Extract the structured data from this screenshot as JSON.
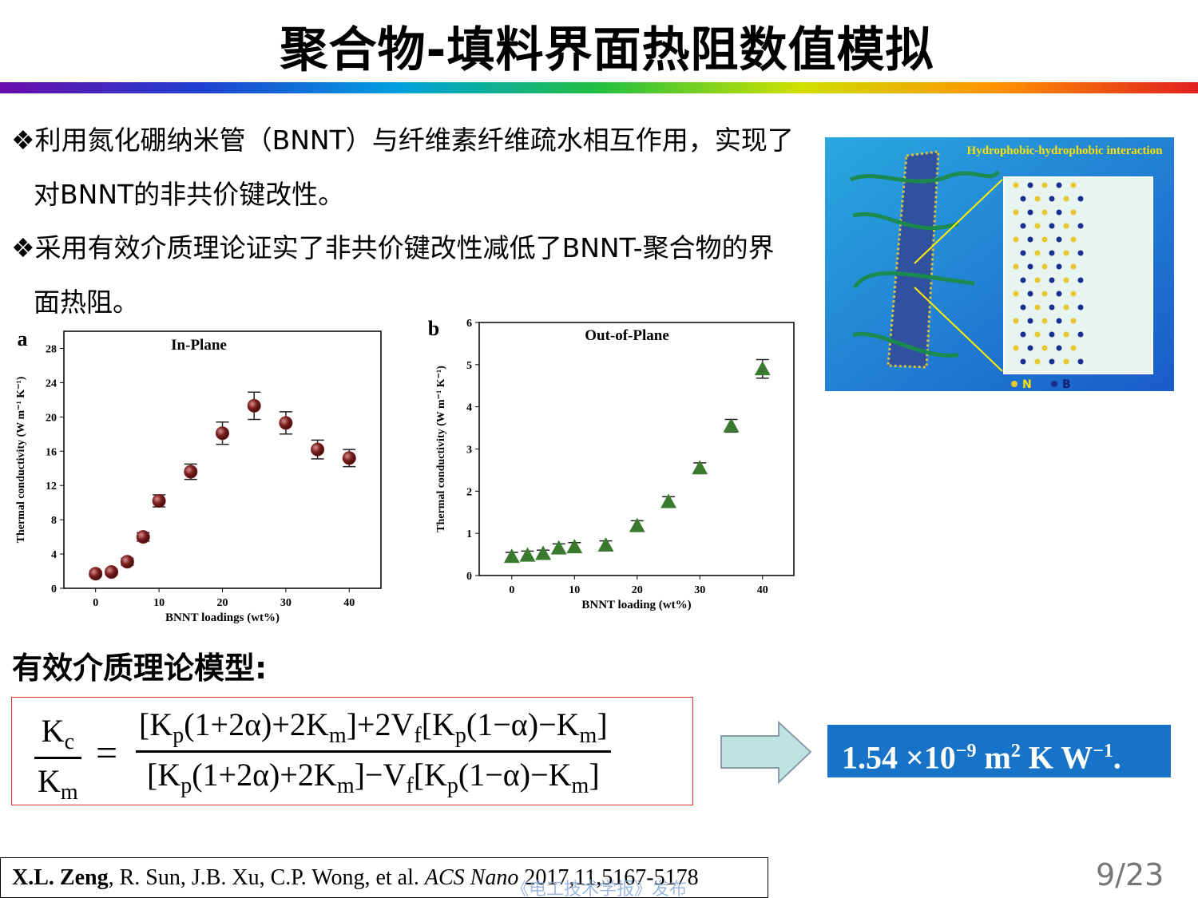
{
  "title": "聚合物-填料界面热阻数值模拟",
  "bullets": [
    "❖利用氮化硼纳米管（BNNT）与纤维素纤维疏水相互作用，实现了对BNNT的非共价键改性。",
    "❖采用有效介质理论证实了非共价键改性减低了BNNT-聚合物的界面热阻。"
  ],
  "chart_data": [
    {
      "type": "scatter",
      "panel": "a",
      "title": "In-Plane",
      "x_label": "BNNT loadings (wt%)",
      "y_label": "Thermal conductivity (W m⁻¹ K⁻¹)",
      "x": [
        0,
        2.5,
        5,
        7.5,
        10,
        15,
        20,
        25,
        30,
        35,
        40
      ],
      "values": [
        1.7,
        1.9,
        3.1,
        6.0,
        10.2,
        13.6,
        18.1,
        21.3,
        19.3,
        16.2,
        15.2
      ],
      "errors": [
        0.3,
        0.3,
        0.4,
        0.5,
        0.7,
        0.9,
        1.3,
        1.6,
        1.3,
        1.1,
        1.0
      ],
      "marker": "circle",
      "color": "#7a1f1f",
      "xlim": [
        -5,
        45
      ],
      "xticks": [
        0,
        10,
        20,
        30,
        40
      ],
      "ylim": [
        0,
        30
      ],
      "yticks": [
        0,
        4,
        8,
        12,
        16,
        20,
        24,
        28
      ]
    },
    {
      "type": "scatter",
      "panel": "b",
      "title": "Out-of-Plane",
      "x_label": "BNNT loading (wt%)",
      "y_label": "Thermal conductivity (W m⁻¹ K⁻¹)",
      "x": [
        0,
        2.5,
        5,
        7.5,
        10,
        15,
        20,
        25,
        30,
        35,
        40
      ],
      "values": [
        0.45,
        0.48,
        0.52,
        0.65,
        0.68,
        0.72,
        1.18,
        1.75,
        2.55,
        3.55,
        4.9
      ],
      "errors": [
        0.1,
        0.1,
        0.08,
        0.1,
        0.1,
        0.1,
        0.12,
        0.12,
        0.12,
        0.15,
        0.22
      ],
      "marker": "triangle",
      "color": "#3a7a2e",
      "xlim": [
        -5.2,
        45
      ],
      "xticks": [
        0,
        10,
        20,
        30,
        40
      ],
      "ylim": [
        0,
        6
      ],
      "yticks": [
        0,
        1,
        2,
        3,
        4,
        5,
        6
      ]
    }
  ],
  "diagram": {
    "caption": "Hydrophobic-hydrophobic interaction",
    "legend": [
      "N",
      "B"
    ]
  },
  "model_heading": "有效介质理论模型:",
  "formula": {
    "lhs_num": [
      "K",
      "c"
    ],
    "lhs_den": [
      "K",
      "m"
    ],
    "equals": "=",
    "rhs_num": [
      "[K",
      "p",
      "(1+2α)+2K",
      "m",
      "]+2V",
      "f",
      "[K",
      "p",
      "(1−α)−K",
      "m",
      "]"
    ],
    "rhs_den": [
      "[K",
      "p",
      "(1+2α)+2K",
      "m",
      "]−V",
      "f",
      "[K",
      "p",
      "(1−α)−K",
      "m",
      "]"
    ]
  },
  "result": [
    "1.54 ×10",
    "−9",
    " m",
    "2",
    " K W",
    "−1",
    "."
  ],
  "citation": [
    "X.L. Zeng",
    ", R. Sun, J.B. Xu, C.P. Wong, et al. ",
    "ACS Nano",
    " 2017,11,5167-5178"
  ],
  "page_number": "9/23",
  "watermark": "《电工技术学报》发布"
}
